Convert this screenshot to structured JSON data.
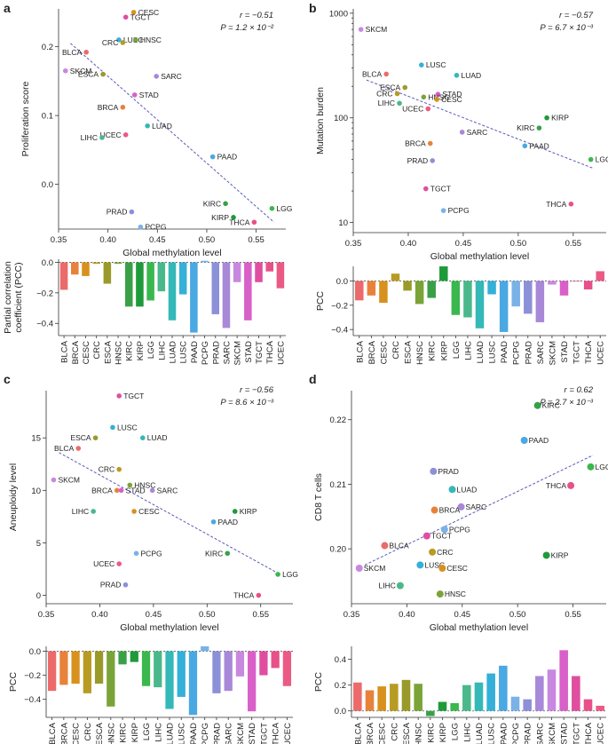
{
  "colors": {
    "BLCA": "#ec6a6a",
    "BRCA": "#e8823a",
    "CESC": "#d8911e",
    "CRC": "#b89b22",
    "ESCA": "#9a9a2a",
    "HNSC": "#7aa438",
    "KIRC": "#3aa048",
    "KIRP": "#1f9a3a",
    "LGG": "#3ab84e",
    "LIHC": "#4ab88a",
    "LUAD": "#35b8b8",
    "LUSC": "#35b0d8",
    "PAAD": "#4aa8e2",
    "PCPG": "#7ab2e8",
    "PRAD": "#8c90d8",
    "SARC": "#a888d8",
    "SKCM": "#c888e0",
    "STAD": "#d860c8",
    "TGCT": "#e04ea0",
    "THCA": "#e8508a",
    "UCEC": "#ea5a84"
  },
  "bar_categories": [
    "BLCA",
    "BRCA",
    "CESC",
    "CRC",
    "ESCA",
    "HNSC",
    "KIRC",
    "KIRP",
    "LGG",
    "LIHC",
    "LUAD",
    "LUSC",
    "PAAD",
    "PCPG",
    "PRAD",
    "SARC",
    "SKCM",
    "STAD",
    "TGCT",
    "THCA",
    "UCEC"
  ],
  "panels": {
    "a": {
      "label": "a",
      "scatter": {
        "xlabel": "Global methylation level",
        "ylabel": "Proliferation score",
        "xticks": [
          "0.35",
          "0.40",
          "0.45",
          "0.50",
          "0.55"
        ],
        "yticks": [
          "0.0",
          "0.1",
          "0.2"
        ],
        "stat_r": "r = −0.51",
        "stat_p": "P = 1.2 × 10⁻²"
      },
      "bars": {
        "ylabel_line1": "Partial correlation",
        "ylabel_line2": "coefficient (PCC)",
        "yticks": [
          "0.0",
          "−0.2",
          "−0.4"
        ]
      }
    },
    "b": {
      "label": "b",
      "scatter": {
        "xlabel": "Global methylation level",
        "ylabel": "Mutation burden",
        "xticks": [
          "0.35",
          "0.40",
          "0.45",
          "0.50",
          "0.55"
        ],
        "yticks": [
          "10",
          "100",
          "1000"
        ],
        "stat_r": "r = −0.57",
        "stat_p": "P = 6.7 × 10⁻³"
      },
      "bars": {
        "ylabel": "PCC",
        "yticks": [
          "0.0",
          "−0.2",
          "−0.4"
        ]
      }
    },
    "c": {
      "label": "c",
      "scatter": {
        "xlabel": "Global methylation level",
        "ylabel": "Aneuploidy level",
        "xticks": [
          "0.35",
          "0.40",
          "0.45",
          "0.50",
          "0.55"
        ],
        "yticks": [
          "0",
          "5",
          "10",
          "15"
        ],
        "stat_r": "r = −0.56",
        "stat_p": "P = 8.6 × 10⁻³"
      },
      "bars": {
        "ylabel": "PCC",
        "yticks": [
          "0.0",
          "−0.2",
          "−0.4"
        ]
      }
    },
    "d": {
      "label": "d",
      "scatter": {
        "xlabel": "Global methylation level",
        "ylabel": "CD8 T cells",
        "xticks": [
          "0.35",
          "0.40",
          "0.45",
          "0.50",
          "0.55"
        ],
        "yticks": [
          "0.20",
          "0.21",
          "0.22"
        ],
        "stat_r": "r = 0.62",
        "stat_p": "P = 2.7 × 10⁻³"
      },
      "bars": {
        "ylabel": "PCC",
        "yticks": [
          "0.0",
          "0.2",
          "0.4"
        ]
      }
    }
  },
  "chart_data": [
    {
      "panel": "a",
      "type": "scatter",
      "title": "",
      "xlabel": "Global methylation level",
      "ylabel": "Proliferation score",
      "xlim": [
        0.35,
        0.58
      ],
      "ylim": [
        -0.065,
        0.255
      ],
      "trend": [
        [
          0.362,
          0.205
        ],
        [
          0.568,
          -0.055
        ]
      ],
      "points": [
        {
          "name": "CESC",
          "x": 0.426,
          "y": 0.25
        },
        {
          "name": "TGCT",
          "x": 0.418,
          "y": 0.243
        },
        {
          "name": "LUSC",
          "x": 0.411,
          "y": 0.21
        },
        {
          "name": "HNSC",
          "x": 0.428,
          "y": 0.21
        },
        {
          "name": "CRC",
          "x": 0.415,
          "y": 0.206
        },
        {
          "name": "BLCA",
          "x": 0.378,
          "y": 0.192
        },
        {
          "name": "SKCM",
          "x": 0.357,
          "y": 0.165
        },
        {
          "name": "ESCA",
          "x": 0.395,
          "y": 0.16
        },
        {
          "name": "SARC",
          "x": 0.449,
          "y": 0.157
        },
        {
          "name": "STAD",
          "x": 0.427,
          "y": 0.13
        },
        {
          "name": "BRCA",
          "x": 0.415,
          "y": 0.112
        },
        {
          "name": "LUAD",
          "x": 0.44,
          "y": 0.085
        },
        {
          "name": "UCEC",
          "x": 0.418,
          "y": 0.072
        },
        {
          "name": "LIHC",
          "x": 0.394,
          "y": 0.068
        },
        {
          "name": "PAAD",
          "x": 0.506,
          "y": 0.04
        },
        {
          "name": "KIRC",
          "x": 0.519,
          "y": -0.028
        },
        {
          "name": "LGG",
          "x": 0.566,
          "y": -0.035
        },
        {
          "name": "PRAD",
          "x": 0.424,
          "y": -0.04
        },
        {
          "name": "KIRP",
          "x": 0.527,
          "y": -0.048
        },
        {
          "name": "THCA",
          "x": 0.548,
          "y": -0.055
        },
        {
          "name": "PCPG",
          "x": 0.433,
          "y": -0.062
        }
      ]
    },
    {
      "panel": "a",
      "type": "bar",
      "ylabel": "Partial correlation coefficient (PCC)",
      "ylim": [
        -0.48,
        0.02
      ],
      "categories": [
        "BLCA",
        "BRCA",
        "CESC",
        "CRC",
        "ESCA",
        "HNSC",
        "KIRC",
        "KIRP",
        "LGG",
        "LIHC",
        "LUAD",
        "LUSC",
        "PAAD",
        "PCPG",
        "PRAD",
        "SARC",
        "SKCM",
        "STAD",
        "TGCT",
        "THCA",
        "UCEC"
      ],
      "values": [
        -0.18,
        -0.08,
        -0.09,
        -0.01,
        -0.14,
        -0.01,
        -0.29,
        -0.29,
        -0.25,
        -0.19,
        -0.38,
        -0.21,
        -0.46,
        0.01,
        -0.34,
        -0.43,
        -0.13,
        -0.38,
        -0.13,
        -0.06,
        -0.17
      ]
    },
    {
      "panel": "b",
      "type": "scatter",
      "scale_y": "log",
      "xlabel": "Global methylation level",
      "ylabel": "Mutation burden",
      "xlim": [
        0.35,
        0.58
      ],
      "ylim": [
        8,
        1100
      ],
      "trend": [
        [
          0.362,
          230
        ],
        [
          0.568,
          33
        ]
      ],
      "points": [
        {
          "name": "SKCM",
          "x": 0.357,
          "y": 700
        },
        {
          "name": "LUSC",
          "x": 0.412,
          "y": 320
        },
        {
          "name": "LUAD",
          "x": 0.444,
          "y": 255
        },
        {
          "name": "BLCA",
          "x": 0.38,
          "y": 262
        },
        {
          "name": "ESCA",
          "x": 0.397,
          "y": 195
        },
        {
          "name": "CRC",
          "x": 0.39,
          "y": 170
        },
        {
          "name": "STAD",
          "x": 0.427,
          "y": 168
        },
        {
          "name": "HNSC",
          "x": 0.414,
          "y": 158
        },
        {
          "name": "CESC",
          "x": 0.426,
          "y": 150
        },
        {
          "name": "LIHC",
          "x": 0.392,
          "y": 138
        },
        {
          "name": "UCEC",
          "x": 0.418,
          "y": 122
        },
        {
          "name": "KIRP",
          "x": 0.526,
          "y": 100
        },
        {
          "name": "KIRC",
          "x": 0.519,
          "y": 80
        },
        {
          "name": "SARC",
          "x": 0.449,
          "y": 73
        },
        {
          "name": "BRCA",
          "x": 0.42,
          "y": 57
        },
        {
          "name": "PAAD",
          "x": 0.506,
          "y": 54
        },
        {
          "name": "LGG",
          "x": 0.566,
          "y": 40
        },
        {
          "name": "PRAD",
          "x": 0.422,
          "y": 39
        },
        {
          "name": "TGCT",
          "x": 0.416,
          "y": 21
        },
        {
          "name": "THCA",
          "x": 0.548,
          "y": 15
        },
        {
          "name": "PCPG",
          "x": 0.432,
          "y": 13
        }
      ]
    },
    {
      "panel": "b",
      "type": "bar",
      "ylabel": "PCC",
      "ylim": [
        -0.45,
        0.12
      ],
      "categories": [
        "BLCA",
        "BRCA",
        "CESC",
        "CRC",
        "ESCA",
        "HNSC",
        "KIRC",
        "KIRP",
        "LGG",
        "LIHC",
        "LUAD",
        "LUSC",
        "PAAD",
        "PCPG",
        "PRAD",
        "SARC",
        "SKCM",
        "STAD",
        "TGCT",
        "THCA",
        "UCEC"
      ],
      "values": [
        -0.16,
        -0.12,
        -0.18,
        0.06,
        -0.08,
        -0.19,
        -0.14,
        0.12,
        -0.28,
        -0.3,
        -0.39,
        -0.11,
        -0.42,
        -0.21,
        -0.27,
        -0.34,
        -0.03,
        -0.12,
        0.0,
        -0.07,
        0.08
      ]
    },
    {
      "panel": "c",
      "type": "scatter",
      "xlabel": "Global methylation level",
      "ylabel": "Aneuploidy level",
      "xlim": [
        0.35,
        0.58
      ],
      "ylim": [
        -0.8,
        19.5
      ],
      "trend": [
        [
          0.362,
          13.6
        ],
        [
          0.568,
          2.0
        ]
      ],
      "points": [
        {
          "name": "TGCT",
          "x": 0.418,
          "y": 19
        },
        {
          "name": "LUSC",
          "x": 0.412,
          "y": 16
        },
        {
          "name": "ESCA",
          "x": 0.396,
          "y": 15
        },
        {
          "name": "LUAD",
          "x": 0.44,
          "y": 15
        },
        {
          "name": "BLCA",
          "x": 0.38,
          "y": 14
        },
        {
          "name": "CRC",
          "x": 0.418,
          "y": 12
        },
        {
          "name": "SKCM",
          "x": 0.357,
          "y": 11
        },
        {
          "name": "HNSC",
          "x": 0.428,
          "y": 10.5
        },
        {
          "name": "BRCA",
          "x": 0.416,
          "y": 10
        },
        {
          "name": "STAD",
          "x": 0.42,
          "y": 10
        },
        {
          "name": "SARC",
          "x": 0.449,
          "y": 10
        },
        {
          "name": "LIHC",
          "x": 0.394,
          "y": 8
        },
        {
          "name": "CESC",
          "x": 0.432,
          "y": 8
        },
        {
          "name": "KIRP",
          "x": 0.526,
          "y": 8
        },
        {
          "name": "PAAD",
          "x": 0.506,
          "y": 7
        },
        {
          "name": "PCPG",
          "x": 0.434,
          "y": 4
        },
        {
          "name": "KIRC",
          "x": 0.519,
          "y": 4
        },
        {
          "name": "UCEC",
          "x": 0.418,
          "y": 3
        },
        {
          "name": "LGG",
          "x": 0.566,
          "y": 2
        },
        {
          "name": "PRAD",
          "x": 0.424,
          "y": 1
        },
        {
          "name": "THCA",
          "x": 0.548,
          "y": 0
        }
      ]
    },
    {
      "panel": "c",
      "type": "bar",
      "ylabel": "PCC",
      "ylim": [
        -0.55,
        0.04
      ],
      "categories": [
        "BLCA",
        "BRCA",
        "CESC",
        "CRC",
        "ESCA",
        "HNSC",
        "KIRC",
        "KIRP",
        "LGG",
        "LIHC",
        "LUAD",
        "LUSC",
        "PAAD",
        "PCPG",
        "PRAD",
        "SARC",
        "SKCM",
        "STAD",
        "TGCT",
        "THCA",
        "UCEC"
      ],
      "values": [
        -0.33,
        -0.28,
        -0.27,
        -0.35,
        -0.27,
        -0.46,
        -0.11,
        -0.09,
        -0.29,
        -0.3,
        -0.48,
        -0.38,
        -0.53,
        0.04,
        -0.35,
        -0.33,
        -0.21,
        -0.5,
        -0.2,
        -0.14,
        -0.29
      ]
    },
    {
      "panel": "d",
      "type": "scatter",
      "xlabel": "Global methylation level",
      "ylabel": "CD8 T cells",
      "xlim": [
        0.35,
        0.58
      ],
      "ylim": [
        0.1915,
        0.2245
      ],
      "trend": [
        [
          0.362,
          0.1975
        ],
        [
          0.568,
          0.2145
        ]
      ],
      "points": [
        {
          "name": "KIRC",
          "x": 0.518,
          "y": 0.2222
        },
        {
          "name": "PAAD",
          "x": 0.506,
          "y": 0.2168
        },
        {
          "name": "LGG",
          "x": 0.566,
          "y": 0.2127
        },
        {
          "name": "PRAD",
          "x": 0.424,
          "y": 0.212
        },
        {
          "name": "THCA",
          "x": 0.548,
          "y": 0.2098
        },
        {
          "name": "LUAD",
          "x": 0.441,
          "y": 0.2092
        },
        {
          "name": "SARC",
          "x": 0.449,
          "y": 0.2065
        },
        {
          "name": "BRCA",
          "x": 0.425,
          "y": 0.206
        },
        {
          "name": "PCPG",
          "x": 0.434,
          "y": 0.203
        },
        {
          "name": "TGCT",
          "x": 0.418,
          "y": 0.202
        },
        {
          "name": "BLCA",
          "x": 0.38,
          "y": 0.2005
        },
        {
          "name": "CRC",
          "x": 0.423,
          "y": 0.1995
        },
        {
          "name": "KIRP",
          "x": 0.526,
          "y": 0.199
        },
        {
          "name": "LUSC",
          "x": 0.412,
          "y": 0.1975
        },
        {
          "name": "SKCM",
          "x": 0.357,
          "y": 0.197
        },
        {
          "name": "CESC",
          "x": 0.432,
          "y": 0.197
        },
        {
          "name": "LIHC",
          "x": 0.394,
          "y": 0.1943
        },
        {
          "name": "HNSC",
          "x": 0.43,
          "y": 0.193
        }
      ]
    },
    {
      "panel": "d",
      "type": "bar",
      "ylabel": "PCC",
      "ylim": [
        -0.05,
        0.5
      ],
      "categories": [
        "BLCA",
        "BRCA",
        "CESC",
        "CRC",
        "ESCA",
        "HNSC",
        "KIRC",
        "KIRP",
        "LGG",
        "LIHC",
        "LUAD",
        "LUSC",
        "PAAD",
        "PCPG",
        "PRAD",
        "SARC",
        "SKCM",
        "STAD",
        "TGCT",
        "THCA",
        "UCEC"
      ],
      "values": [
        0.22,
        0.16,
        0.19,
        0.21,
        0.24,
        0.21,
        -0.04,
        0.07,
        0.06,
        0.2,
        0.22,
        0.29,
        0.35,
        0.11,
        0.09,
        0.27,
        0.32,
        0.47,
        0.27,
        0.09,
        0.04
      ]
    }
  ]
}
